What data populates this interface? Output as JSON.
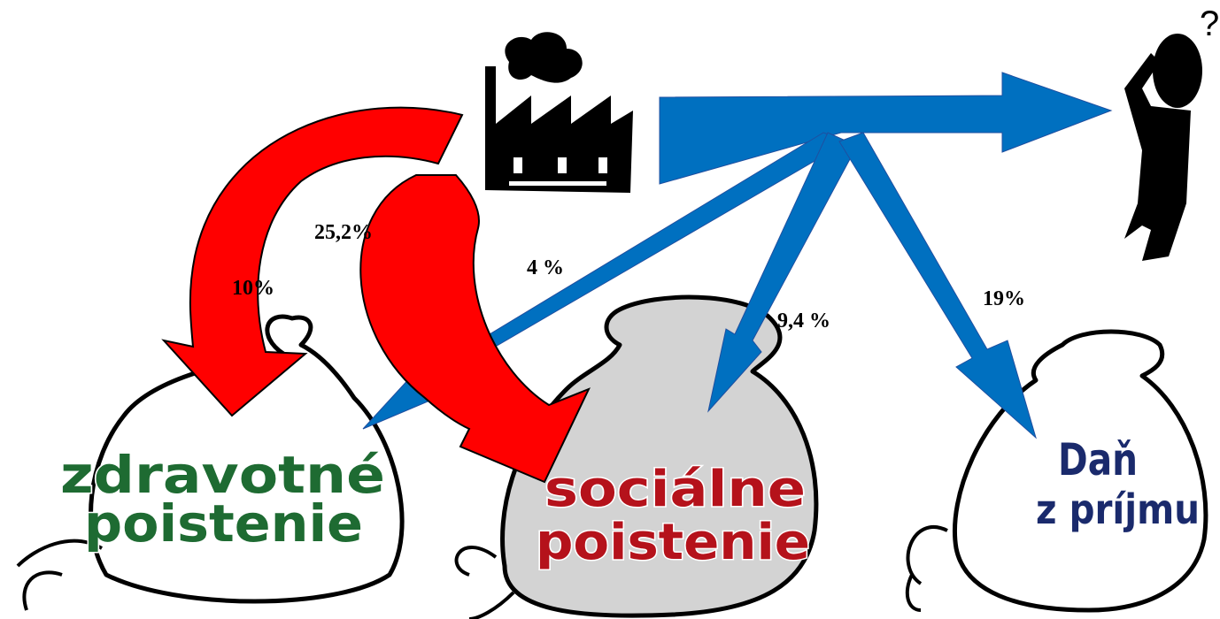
{
  "labels": {
    "social_employer": "25,2%",
    "health_employer": "10%",
    "health_employee": "4 %",
    "social_employee": "9,4 %",
    "income_tax": "19%"
  },
  "bags": [
    {
      "line1": "zdravotné",
      "line2": "poistenie"
    },
    {
      "line1": "sociálne",
      "line2": "poistenie"
    },
    {
      "line1": "Daň",
      "line2": "z príjmu"
    }
  ],
  "person": {
    "thought": "?"
  }
}
